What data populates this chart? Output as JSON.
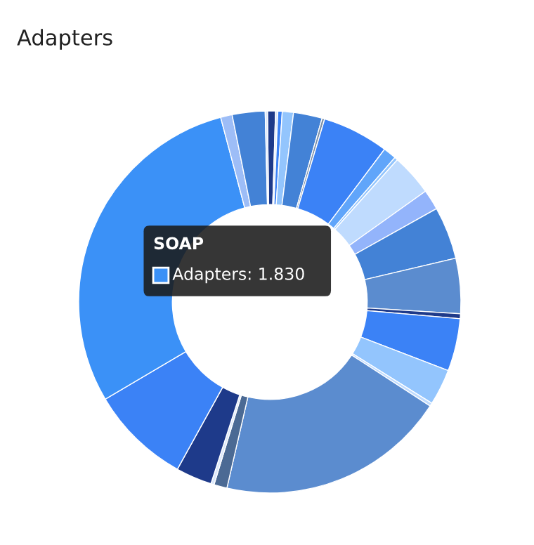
{
  "chart_data": {
    "type": "donut",
    "title": "Adapters",
    "categories": [
      null,
      null,
      null,
      null,
      null,
      null,
      null,
      null,
      null,
      null,
      null,
      null,
      null,
      null,
      null,
      null,
      null,
      null,
      null,
      null,
      null,
      null,
      "SOAP",
      null,
      null,
      null
    ],
    "values": [
      0.042,
      0.012,
      0.023,
      0.059,
      0.151,
      0.014,
      0.35,
      0.069,
      0.017,
      0.22,
      0.107,
      0.277,
      0.291,
      0.026,
      0.277,
      0.19,
      0.017,
      1.212,
      0.069,
      0.017,
      0.19,
      0.528,
      1.83,
      0.061,
      0.173,
      0.012
    ],
    "colors": [
      "#1e3a8a",
      "#dbe8fb",
      "#3b82f6",
      "#93c5fd",
      "#4382d6",
      "#7c8fa8",
      "#3b82f6",
      "#60a5fa",
      "#93c5fd",
      "#bfdbfe",
      "#93b4fb",
      "#4382d6",
      "#5b8ccf",
      "#1e3a8a",
      "#3b82f6",
      "#93c5fd",
      "#bfdbfe",
      "#5b8ccf",
      "#4b6a94",
      "#dbe8fb",
      "#1e3a8a",
      "#3b82f6",
      "#3b91f7",
      "#9dbdf7",
      "#4382d6",
      "#dbe8fb"
    ],
    "value_labels": [
      null,
      null,
      null,
      null,
      null,
      null,
      null,
      null,
      null,
      null,
      null,
      null,
      null,
      null,
      null,
      null,
      null,
      null,
      null,
      null,
      null,
      null,
      "Adapters: 1.830",
      null,
      null,
      null
    ],
    "legend": false
  }
}
